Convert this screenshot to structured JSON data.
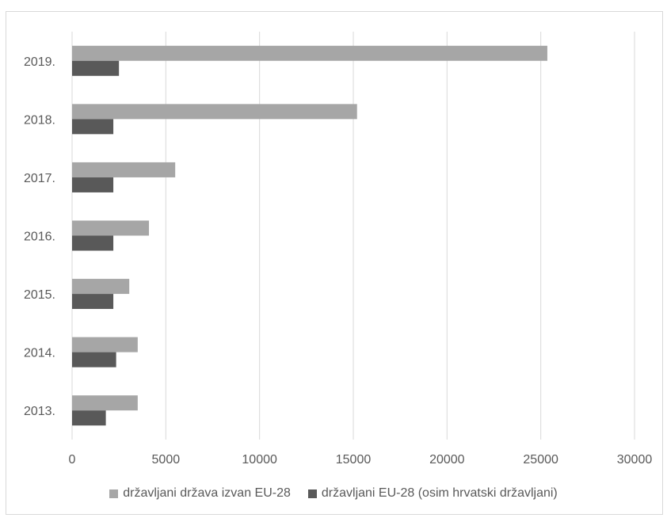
{
  "chart_data": {
    "type": "bar",
    "orientation": "horizontal",
    "categories": [
      "2013.",
      "2014.",
      "2015.",
      "2016.",
      "2017.",
      "2018.",
      "2019."
    ],
    "series": [
      {
        "name": "državljani država izvan EU-28",
        "color": "#a6a6a6",
        "values": [
          3500,
          3500,
          3050,
          4100,
          5500,
          15200,
          25350
        ]
      },
      {
        "name": "državljani EU-28 (osim hrvatski državljani)",
        "color": "#595959",
        "values": [
          1800,
          2350,
          2200,
          2200,
          2200,
          2200,
          2500
        ]
      }
    ],
    "xlim": [
      0,
      30000
    ],
    "xticks": [
      "0",
      "5000",
      "10000",
      "15000",
      "20000",
      "25000",
      "30000"
    ],
    "title": "",
    "xlabel": "",
    "ylabel": "",
    "grid": "vertical",
    "legend_position": "bottom"
  }
}
